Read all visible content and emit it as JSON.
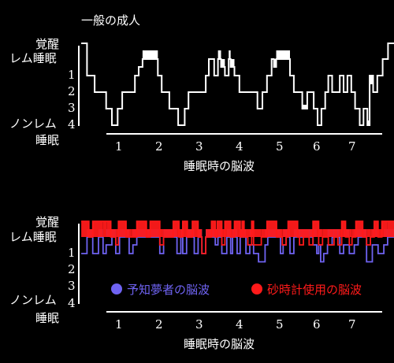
{
  "chart_data": [
    {
      "type": "line",
      "title": "一般の成人",
      "xlabel": "睡眠時の脳波",
      "x_ticks": [
        "1",
        "2",
        "3",
        "4",
        "5",
        "6",
        "7"
      ],
      "y_labels": [
        "覚醒",
        "レム睡眠",
        "1",
        "2",
        "3",
        "ノンレム",
        "睡眠",
        "4"
      ],
      "xlim": [
        0,
        8
      ],
      "series": [
        {
          "color": "#ffffff",
          "steps": [
            [
              -0.45,
              -1
            ],
            [
              -0.3,
              1
            ],
            [
              -0.1,
              2
            ],
            [
              0.2,
              3
            ],
            [
              0.35,
              4
            ],
            [
              0.5,
              3
            ],
            [
              0.62,
              2
            ],
            [
              0.95,
              1
            ],
            [
              1.05,
              0.5
            ],
            [
              1.15,
              0
            ],
            [
              1.55,
              1
            ],
            [
              1.65,
              2
            ],
            [
              1.85,
              3
            ],
            [
              2.08,
              4
            ],
            [
              2.25,
              3
            ],
            [
              2.35,
              2
            ],
            [
              2.8,
              1
            ],
            [
              2.88,
              0
            ],
            [
              3.02,
              1
            ],
            [
              3.12,
              0
            ],
            [
              3.2,
              0.5
            ],
            [
              3.3,
              1
            ],
            [
              3.4,
              0
            ],
            [
              3.45,
              0.5
            ],
            [
              3.55,
              1
            ],
            [
              3.68,
              2
            ],
            [
              4.15,
              3
            ],
            [
              4.28,
              2
            ],
            [
              4.4,
              1
            ],
            [
              4.52,
              0
            ],
            [
              4.58,
              0.5
            ],
            [
              4.64,
              0
            ],
            [
              5.0,
              1
            ],
            [
              5.1,
              2
            ],
            [
              5.32,
              3
            ],
            [
              5.45,
              2
            ],
            [
              5.62,
              3
            ],
            [
              5.72,
              4
            ],
            [
              5.82,
              3
            ],
            [
              5.92,
              2
            ],
            [
              6.0,
              1
            ],
            [
              6.1,
              2
            ],
            [
              6.3,
              1
            ],
            [
              6.4,
              2
            ],
            [
              6.5,
              1
            ],
            [
              6.6,
              2
            ],
            [
              6.7,
              3
            ],
            [
              6.82,
              4
            ],
            [
              6.92,
              3
            ],
            [
              7.02,
              4
            ],
            [
              7.08,
              1
            ],
            [
              7.17,
              2
            ],
            [
              7.28,
              1
            ],
            [
              7.42,
              0
            ],
            [
              7.56,
              -1
            ],
            [
              7.8,
              -1
            ]
          ],
          "rem_spans": [
            [
              1.15,
              1.55
            ],
            [
              3.12,
              3.2
            ],
            [
              3.4,
              3.45
            ],
            [
              4.64,
              5.0
            ]
          ],
          "rem_lower_spans": [
            [
              3.2,
              3.3
            ],
            [
              3.45,
              3.55
            ],
            [
              4.58,
              4.64
            ]
          ],
          "stage3_spans": [
            [
              5.32,
              5.45
            ]
          ],
          "stage4_spans": [
            [
              7.02,
              7.08
            ]
          ],
          "small_spans": [
            [
              7.08,
              7.17
            ]
          ]
        }
      ]
    },
    {
      "type": "line",
      "xlabel": "睡眠時の脳波",
      "x_ticks": [
        "1",
        "2",
        "3",
        "4",
        "5",
        "6",
        "7"
      ],
      "y_labels": [
        "覚醒",
        "レム睡眠",
        "1",
        "2",
        "3",
        "ノンレム",
        "睡眠",
        "4"
      ],
      "xlim": [
        0,
        8
      ],
      "legend": [
        "予知夢者の脳波",
        "砂時計使用の脳波"
      ],
      "series": [
        {
          "name": "予知夢者の脳波",
          "color": "#6f63f2",
          "steps": [
            [
              -0.45,
              1
            ],
            [
              -0.3,
              0
            ],
            [
              -0.15,
              1
            ],
            [
              0.0,
              0
            ],
            [
              0.12,
              1
            ],
            [
              0.2,
              0.5
            ],
            [
              0.35,
              0
            ],
            [
              0.45,
              1
            ],
            [
              0.55,
              0
            ],
            [
              0.8,
              1
            ],
            [
              0.9,
              0.5
            ],
            [
              1.0,
              0
            ],
            [
              1.6,
              1
            ],
            [
              1.7,
              0
            ],
            [
              2.05,
              1
            ],
            [
              2.15,
              0
            ],
            [
              2.2,
              1
            ],
            [
              2.3,
              0
            ],
            [
              2.5,
              1
            ],
            [
              2.6,
              0
            ],
            [
              2.7,
              1
            ],
            [
              2.8,
              0
            ],
            [
              3.05,
              0.5
            ],
            [
              3.12,
              0
            ],
            [
              3.22,
              1
            ],
            [
              3.35,
              0
            ],
            [
              3.45,
              1
            ],
            [
              3.5,
              0
            ],
            [
              3.62,
              1
            ],
            [
              3.7,
              0
            ],
            [
              3.85,
              1
            ],
            [
              3.95,
              0.5
            ],
            [
              4.05,
              1
            ],
            [
              4.18,
              1.5
            ],
            [
              4.35,
              0.5
            ],
            [
              4.42,
              0
            ],
            [
              4.75,
              1
            ],
            [
              4.82,
              0.5
            ],
            [
              4.9,
              0
            ],
            [
              5.0,
              1
            ],
            [
              5.1,
              0
            ],
            [
              5.6,
              0.5
            ],
            [
              5.7,
              1
            ],
            [
              5.75,
              0.5
            ],
            [
              5.8,
              1.5
            ],
            [
              5.88,
              1
            ],
            [
              5.98,
              0.5
            ],
            [
              6.1,
              0
            ],
            [
              6.3,
              1
            ],
            [
              6.4,
              0.5
            ],
            [
              6.55,
              1
            ],
            [
              6.68,
              0.5
            ],
            [
              6.78,
              0
            ],
            [
              7.0,
              1.5
            ],
            [
              7.15,
              0.5
            ],
            [
              7.3,
              1
            ],
            [
              7.45,
              0.5
            ],
            [
              7.55,
              0
            ],
            [
              7.8,
              0
            ]
          ]
        },
        {
          "name": "砂時計使用の脳波",
          "color": "#ff1a1a",
          "steps": [
            [
              -0.45,
              -1
            ],
            [
              -0.35,
              -1
            ],
            [
              -0.25,
              0
            ],
            [
              -0.15,
              -1
            ],
            [
              0.0,
              -1
            ],
            [
              0.12,
              -1
            ],
            [
              0.22,
              -1
            ],
            [
              0.32,
              0
            ],
            [
              0.45,
              0.5
            ],
            [
              0.52,
              -1
            ],
            [
              0.72,
              0
            ],
            [
              0.85,
              0
            ],
            [
              1.0,
              -1
            ],
            [
              1.25,
              0
            ],
            [
              1.35,
              -1
            ],
            [
              1.45,
              -1
            ],
            [
              1.6,
              0.5
            ],
            [
              1.7,
              0
            ],
            [
              1.95,
              -1
            ],
            [
              2.1,
              0
            ],
            [
              2.2,
              -1
            ],
            [
              2.32,
              0
            ],
            [
              2.45,
              -1
            ],
            [
              2.6,
              0
            ],
            [
              2.7,
              1
            ],
            [
              2.8,
              0
            ],
            [
              2.95,
              -1
            ],
            [
              3.05,
              0
            ],
            [
              3.1,
              -1
            ],
            [
              3.22,
              0.5
            ],
            [
              3.3,
              -1
            ],
            [
              3.45,
              0
            ],
            [
              3.55,
              -1
            ],
            [
              3.7,
              0
            ],
            [
              3.75,
              -1
            ],
            [
              3.8,
              0
            ],
            [
              3.9,
              0.5
            ],
            [
              4.0,
              -1
            ],
            [
              4.05,
              0.5
            ],
            [
              4.25,
              0
            ],
            [
              4.4,
              -1
            ],
            [
              4.65,
              0
            ],
            [
              4.8,
              0.5
            ],
            [
              4.9,
              0
            ],
            [
              4.95,
              -1
            ],
            [
              5.2,
              0
            ],
            [
              5.25,
              0.5
            ],
            [
              5.35,
              0
            ],
            [
              5.5,
              0.5
            ],
            [
              5.6,
              -1
            ],
            [
              5.75,
              0.5
            ],
            [
              5.85,
              0
            ],
            [
              6.0,
              0.5
            ],
            [
              6.15,
              0
            ],
            [
              6.25,
              0.5
            ],
            [
              6.35,
              -1
            ],
            [
              6.45,
              0
            ],
            [
              6.55,
              0.5
            ],
            [
              6.62,
              0
            ],
            [
              6.72,
              -1
            ],
            [
              6.9,
              0
            ],
            [
              7.0,
              0.5
            ],
            [
              7.1,
              0
            ],
            [
              7.2,
              -1
            ],
            [
              7.3,
              0
            ],
            [
              7.4,
              -1
            ],
            [
              7.55,
              -1
            ],
            [
              7.8,
              -1
            ]
          ]
        }
      ]
    }
  ]
}
